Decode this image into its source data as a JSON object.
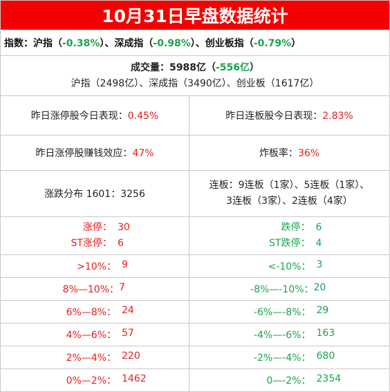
{
  "title": "10月31日早盘数据统计",
  "indices": {
    "label": "指数：",
    "sh_name": "沪指（",
    "sh_change": "-0.38%",
    "sz_name": "）、深成指（",
    "sz_change": "-0.98%",
    "cy_name": "）、创业板指（",
    "cy_change": "-0.79%",
    "close": "）"
  },
  "volume": {
    "label": "成交量：",
    "total": "5988亿",
    "open_paren": "（",
    "change": "-556亿",
    "close_paren": "）",
    "detail": "沪指（2498亿）、深成指（3490亿）、创业板（1617亿）"
  },
  "stats": {
    "yesterday_limitup_label": "昨日涨停股今日表现：",
    "yesterday_limitup_value": "0.45%",
    "yesterday_consecutive_label": "昨日连板股今日表现：",
    "yesterday_consecutive_value": "2.83%",
    "money_effect_label": "昨日涨停股赚钱效应：",
    "money_effect_value": "47%",
    "break_rate_label": "炸板率：",
    "break_rate_value": "36%",
    "distribution": "涨跌分布 1601：3256",
    "consecutive_line1": "连板：9连板（1家）、5连板（1家）、",
    "consecutive_line2": "3连板（3家）、2连板（4家）"
  },
  "limits": {
    "up_label": "涨停：",
    "up_value": "30",
    "st_up_label": "ST涨停：",
    "st_up_value": "6",
    "down_label": "跌停：",
    "down_value": "6",
    "st_down_label": "ST跌停：",
    "st_down_value": "4"
  },
  "ranges": [
    {
      "up_label": ">10%：",
      "up_value": "9",
      "down_label": "<-10%：",
      "down_value": "3"
    },
    {
      "up_label": "8%—10%：",
      "up_value": "7",
      "down_label": "-8%—-10%：",
      "down_value": "20"
    },
    {
      "up_label": "6%—8%：",
      "up_value": "24",
      "down_label": "-6%—-8%：",
      "down_value": "29"
    },
    {
      "up_label": "4%—6%：",
      "up_value": "57",
      "down_label": "-4%—-6%：",
      "down_value": "163"
    },
    {
      "up_label": "2%—4%：",
      "up_value": "220",
      "down_label": "-2%—-4%：",
      "down_value": "680"
    },
    {
      "up_label": "0%—2%：",
      "up_value": "1462",
      "down_label": "0—-2%：",
      "down_value": "2354"
    }
  ],
  "colors": {
    "title_bg": "#f40000",
    "up": "#e51c1c",
    "down": "#1aa34a"
  }
}
